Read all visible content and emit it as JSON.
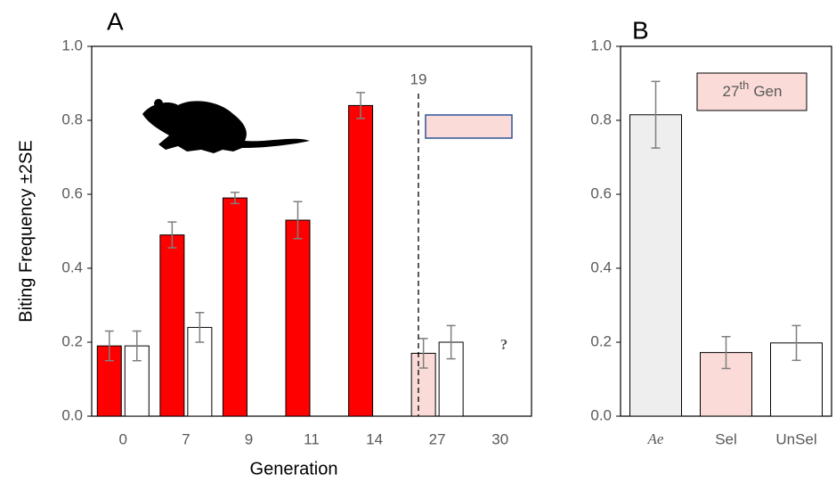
{
  "chart_data": [
    {
      "type": "bar",
      "panel_label": "A",
      "xlabel": "Generation",
      "ylabel": "Biting Frequency ±2SE",
      "categories": [
        "0",
        "7",
        "9",
        "11",
        "14",
        "27",
        "30"
      ],
      "series": [
        {
          "colors": [
            "#ff0000",
            "#ff0000",
            "#ff0000",
            "#ff0000",
            "#ff0000",
            "#fadbd8",
            "#ff0000"
          ],
          "values": [
            0.19,
            0.49,
            0.59,
            0.53,
            0.84,
            0.17,
            null
          ],
          "errors": [
            0.04,
            0.035,
            0.015,
            0.05,
            0.035,
            0.04,
            null
          ]
        },
        {
          "colors": [
            "#ffffff",
            "#ffffff",
            "#ffffff",
            "#ffffff",
            "#ffffff",
            "#ffffff",
            "#ffffff"
          ],
          "values": [
            0.19,
            0.24,
            null,
            null,
            null,
            0.2,
            null
          ],
          "errors": [
            0.04,
            0.04,
            null,
            null,
            null,
            0.045,
            null
          ]
        }
      ],
      "ylim": [
        0,
        1
      ],
      "yticks": [
        {
          "value": 0,
          "label": "0.0"
        },
        0.2,
        0.4,
        0.6,
        0.8,
        {
          "value": 1,
          "label": "1.0"
        }
      ],
      "divider_label": "19",
      "annotation": "?"
    },
    {
      "type": "bar",
      "panel_label": "B",
      "categories": [
        "Ae",
        "Sel",
        "UnSel"
      ],
      "series": [
        {
          "colors": [
            "#eeeeee",
            "#fadbd8",
            "#ffffff"
          ],
          "values": [
            0.815,
            0.172,
            0.198
          ],
          "errors": [
            0.09,
            0.043,
            0.047
          ]
        }
      ],
      "ylim": [
        0,
        1
      ],
      "yticks": [
        {
          "value": 0,
          "label": "0.0"
        },
        0.2,
        0.4,
        0.6,
        0.8,
        {
          "value": 1,
          "label": "1.0"
        }
      ],
      "note": {
        "base": "27",
        "sup": "th",
        "rest": "Gen"
      }
    }
  ]
}
